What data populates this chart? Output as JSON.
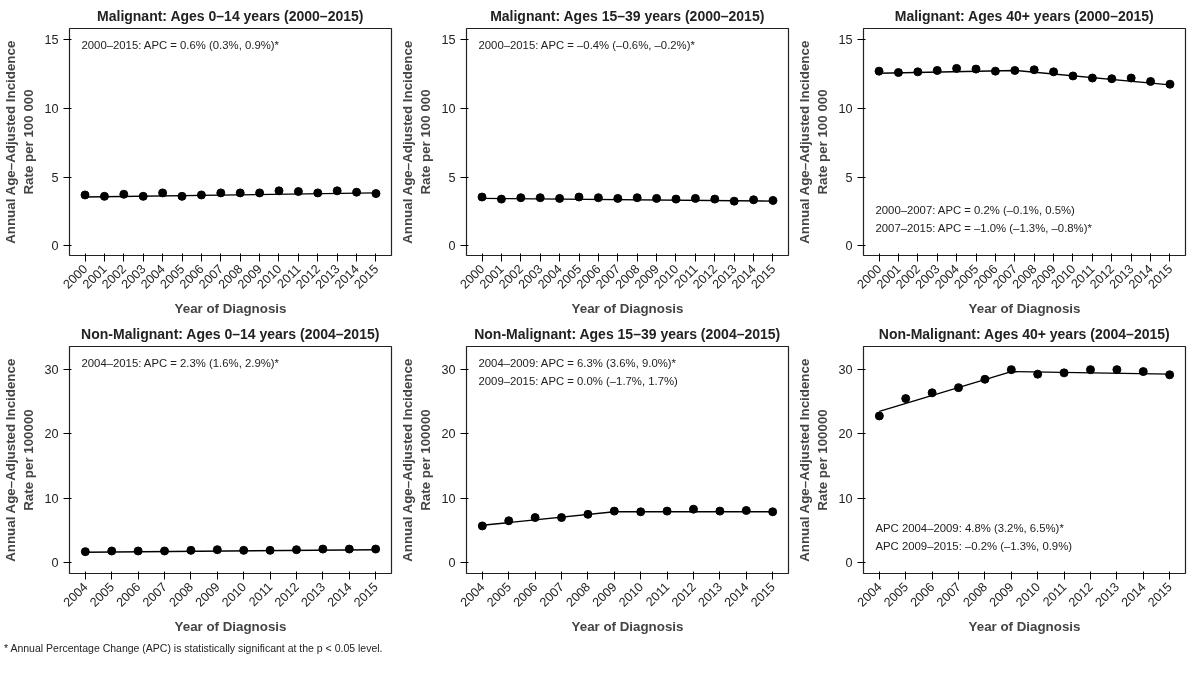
{
  "chart_data": [
    {
      "type": "scatter",
      "title": "Malignant: Ages 0–14 years (2000–2015)",
      "xlabel": "Year of Diagnosis",
      "ylabel": "Annual Age–Adjusted Incidence\nRate per 100 000",
      "x": [
        2000,
        2001,
        2002,
        2003,
        2004,
        2005,
        2006,
        2007,
        2008,
        2009,
        2010,
        2011,
        2012,
        2013,
        2014,
        2015
      ],
      "xlim": [
        1999.2,
        2015.8
      ],
      "xticks": [
        2000,
        2001,
        2002,
        2003,
        2004,
        2005,
        2006,
        2007,
        2008,
        2009,
        2010,
        2011,
        2012,
        2013,
        2014,
        2015
      ],
      "ylim": [
        -0.7,
        15.8
      ],
      "yticks": [
        0,
        5,
        10,
        15
      ],
      "grid": false,
      "marker": "circle",
      "annotations": [
        "2000–2015: APC = 0.6% (0.3%, 0.9%)*"
      ],
      "series": [
        {
          "type": "scatter",
          "color": "#000000",
          "values": [
            3.7,
            3.6,
            3.75,
            3.6,
            3.85,
            3.6,
            3.7,
            3.85,
            3.85,
            3.85,
            4.0,
            3.95,
            3.85,
            4.0,
            3.9,
            3.8
          ]
        },
        {
          "type": "line",
          "marker": "none",
          "color": "#000000",
          "x": [
            2000,
            2015
          ],
          "values": [
            3.55,
            3.85
          ]
        }
      ]
    },
    {
      "type": "scatter",
      "title": "Malignant: Ages 15–39 years (2000–2015)",
      "xlabel": "Year of Diagnosis",
      "ylabel": "Annual Age–Adjusted Incidence\nRate per 100 000",
      "x": [
        2000,
        2001,
        2002,
        2003,
        2004,
        2005,
        2006,
        2007,
        2008,
        2009,
        2010,
        2011,
        2012,
        2013,
        2014,
        2015
      ],
      "xlim": [
        1999.2,
        2015.8
      ],
      "xticks": [
        2000,
        2001,
        2002,
        2003,
        2004,
        2005,
        2006,
        2007,
        2008,
        2009,
        2010,
        2011,
        2012,
        2013,
        2014,
        2015
      ],
      "ylim": [
        -0.7,
        15.8
      ],
      "yticks": [
        0,
        5,
        10,
        15
      ],
      "grid": false,
      "marker": "circle",
      "annotations": [
        "2000–2015: APC = –0.4% (–0.6%, –0.2%)*"
      ],
      "series": [
        {
          "type": "scatter",
          "color": "#000000",
          "values": [
            3.55,
            3.4,
            3.5,
            3.5,
            3.45,
            3.55,
            3.5,
            3.45,
            3.5,
            3.45,
            3.4,
            3.45,
            3.4,
            3.25,
            3.35,
            3.3
          ]
        },
        {
          "type": "line",
          "marker": "none",
          "color": "#000000",
          "x": [
            2000,
            2015
          ],
          "values": [
            3.45,
            3.25
          ]
        }
      ]
    },
    {
      "type": "scatter",
      "title": "Malignant: Ages 40+ years (2000–2015)",
      "xlabel": "Year of Diagnosis",
      "ylabel": "Annual Age–Adjusted Incidence\nRate per 100 000",
      "x": [
        2000,
        2001,
        2002,
        2003,
        2004,
        2005,
        2006,
        2007,
        2008,
        2009,
        2010,
        2011,
        2012,
        2013,
        2014,
        2015
      ],
      "xlim": [
        1999.2,
        2015.8
      ],
      "xticks": [
        2000,
        2001,
        2002,
        2003,
        2004,
        2005,
        2006,
        2007,
        2008,
        2009,
        2010,
        2011,
        2012,
        2013,
        2014,
        2015
      ],
      "ylim": [
        -0.7,
        15.8
      ],
      "yticks": [
        0,
        5,
        10,
        15
      ],
      "grid": false,
      "marker": "circle",
      "annotations": [
        "2000–2007: APC = 0.2% (–0.1%, 0.5%)",
        "2007–2015: APC = –1.0% (–1.3%, –0.8%)*"
      ],
      "series": [
        {
          "type": "scatter",
          "color": "#000000",
          "values": [
            12.7,
            12.6,
            12.65,
            12.75,
            12.9,
            12.85,
            12.7,
            12.75,
            12.8,
            12.65,
            12.35,
            12.2,
            12.15,
            12.2,
            11.95,
            11.75
          ]
        },
        {
          "type": "line",
          "marker": "none",
          "color": "#000000",
          "x": [
            2000,
            2007,
            2015
          ],
          "values": [
            12.55,
            12.75,
            11.7
          ]
        }
      ]
    },
    {
      "type": "scatter",
      "title": "Non-Malignant: Ages 0–14 years (2004–2015)",
      "xlabel": "Year of Diagnosis",
      "ylabel": "Annual Age–Adjusted Incidence\nRate per 100000",
      "x": [
        2004,
        2005,
        2006,
        2007,
        2008,
        2009,
        2010,
        2011,
        2012,
        2013,
        2014,
        2015
      ],
      "xlim": [
        2003.4,
        2015.6
      ],
      "xticks": [
        2004,
        2005,
        2006,
        2007,
        2008,
        2009,
        2010,
        2011,
        2012,
        2013,
        2014,
        2015
      ],
      "ylim": [
        -1.7,
        33.6
      ],
      "yticks": [
        0,
        10,
        20,
        30
      ],
      "grid": false,
      "marker": "circle",
      "annotations": [
        "2004–2015: APC = 2.3% (1.6%, 2.9%)*"
      ],
      "series": [
        {
          "type": "scatter",
          "color": "#000000",
          "values": [
            1.7,
            1.8,
            1.8,
            1.8,
            1.9,
            2.0,
            1.9,
            1.9,
            2.0,
            2.1,
            2.1,
            2.1
          ]
        },
        {
          "type": "line",
          "marker": "none",
          "color": "#000000",
          "x": [
            2004,
            2015
          ],
          "values": [
            1.6,
            2.0
          ]
        }
      ]
    },
    {
      "type": "scatter",
      "title": "Non-Malignant: Ages 15–39 years (2004–2015)",
      "xlabel": "Year of Diagnosis",
      "ylabel": "Annual Age–Adjusted Incidence\nRate per 100000",
      "x": [
        2004,
        2005,
        2006,
        2007,
        2008,
        2009,
        2010,
        2011,
        2012,
        2013,
        2014,
        2015
      ],
      "xlim": [
        2003.4,
        2015.6
      ],
      "xticks": [
        2004,
        2005,
        2006,
        2007,
        2008,
        2009,
        2010,
        2011,
        2012,
        2013,
        2014,
        2015
      ],
      "ylim": [
        -1.7,
        33.6
      ],
      "yticks": [
        0,
        10,
        20,
        30
      ],
      "grid": false,
      "marker": "circle",
      "annotations": [
        "2004–2009: APC = 6.3% (3.6%, 9.0%)*",
        "2009–2015: APC = 0.0% (–1.7%, 1.7%)"
      ],
      "series": [
        {
          "type": "scatter",
          "color": "#000000",
          "values": [
            5.7,
            6.5,
            7.0,
            7.0,
            7.5,
            8.0,
            7.9,
            8.0,
            8.3,
            8.0,
            8.1,
            7.9
          ]
        },
        {
          "type": "line",
          "marker": "none",
          "color": "#000000",
          "x": [
            2004,
            2009,
            2015
          ],
          "values": [
            5.8,
            7.9,
            7.9
          ]
        }
      ]
    },
    {
      "type": "scatter",
      "title": "Non-Malignant: Ages 40+ years (2004–2015)",
      "xlabel": "Year of Diagnosis",
      "ylabel": "Annual Age–Adjusted Incidence\nRate per 100000",
      "x": [
        2004,
        2005,
        2006,
        2007,
        2008,
        2009,
        2010,
        2011,
        2012,
        2013,
        2014,
        2015
      ],
      "xlim": [
        2003.4,
        2015.6
      ],
      "xticks": [
        2004,
        2005,
        2006,
        2007,
        2008,
        2009,
        2010,
        2011,
        2012,
        2013,
        2014,
        2015
      ],
      "ylim": [
        -1.7,
        33.6
      ],
      "yticks": [
        0,
        10,
        20,
        30
      ],
      "grid": false,
      "marker": "circle",
      "annotations": [
        "APC 2004–2009: 4.8% (3.2%, 6.5%)*",
        "APC 2009–2015: –0.2% (–1.3%, 0.9%)"
      ],
      "series": [
        {
          "type": "scatter",
          "color": "#000000",
          "values": [
            22.8,
            25.5,
            26.4,
            27.2,
            28.5,
            30.0,
            29.3,
            29.5,
            30.0,
            30.0,
            29.7,
            29.2
          ]
        },
        {
          "type": "line",
          "marker": "none",
          "color": "#000000",
          "x": [
            2004,
            2009,
            2015
          ],
          "values": [
            23.5,
            29.7,
            29.3
          ]
        }
      ]
    },
    {
      "type": "other",
      "annotations": [
        "* Annual Percentage Change (APC) is statistically significant at the p < 0.05 level."
      ]
    }
  ]
}
